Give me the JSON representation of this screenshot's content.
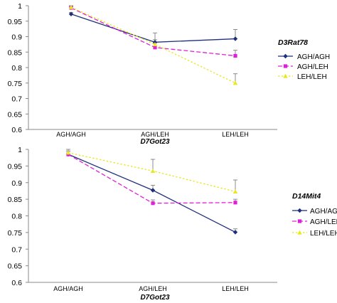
{
  "chart_data": [
    {
      "type": "line",
      "categories": [
        "AGH/AGH",
        "AGH/LEH",
        "LEH/LEH"
      ],
      "xlabel": "D7Got23",
      "ylim": [
        0.6,
        1.0
      ],
      "yticks": [
        0.6,
        0.65,
        0.7,
        0.75,
        0.8,
        0.85,
        0.9,
        0.95,
        1
      ],
      "ytick_labels": [
        "0.6",
        "0.65",
        "0.7",
        "0.75",
        "0.8",
        "0.85",
        "0.9",
        "0.95",
        "1"
      ],
      "grid": false,
      "legend_title": "D3Rat78",
      "legend_position": "right",
      "series": [
        {
          "name": "AGH/AGH",
          "values": [
            0.973,
            0.882,
            0.893
          ],
          "errors": [
            0.005,
            0.03,
            0.03
          ],
          "color": "#1f2f7a",
          "dash": "solid",
          "marker": "diamond"
        },
        {
          "name": "AGH/LEH",
          "values": [
            0.993,
            0.865,
            0.838
          ],
          "errors": [
            0.005,
            0.015,
            0.018
          ],
          "color": "#e020d8",
          "dash": "dashed",
          "marker": "square"
        },
        {
          "name": "LEH/LEH",
          "values": [
            0.995,
            0.875,
            0.75
          ],
          "errors": [
            0.005,
            0.015,
            0.03
          ],
          "color": "#e8e820",
          "dash": "dotted",
          "marker": "triangle"
        }
      ]
    },
    {
      "type": "line",
      "categories": [
        "AGH/AGH",
        "AGH/LEH",
        "LEH/LEH"
      ],
      "xlabel": "D7Got23",
      "ylim": [
        0.6,
        1.0
      ],
      "yticks": [
        0.6,
        0.65,
        0.7,
        0.75,
        0.8,
        0.85,
        0.9,
        0.95,
        1
      ],
      "ytick_labels": [
        "0.6",
        "0.65",
        "0.7",
        "0.75",
        "0.8",
        "0.85",
        "0.9",
        "0.95",
        "1"
      ],
      "grid": false,
      "legend_title": "D14Mit4",
      "legend_position": "right",
      "series": [
        {
          "name": "AGH/AGH",
          "values": [
            0.985,
            0.877,
            0.751
          ],
          "errors": [
            0.01,
            0.015,
            0.01
          ],
          "color": "#1f2f7a",
          "dash": "solid",
          "marker": "diamond"
        },
        {
          "name": "AGH/LEH",
          "values": [
            0.985,
            0.838,
            0.84
          ],
          "errors": [
            0.01,
            0.01,
            0.01
          ],
          "color": "#e020d8",
          "dash": "dashed",
          "marker": "square"
        },
        {
          "name": "LEH/LEH",
          "values": [
            0.99,
            0.935,
            0.873
          ],
          "errors": [
            0.01,
            0.035,
            0.035
          ],
          "color": "#e8e820",
          "dash": "dotted",
          "marker": "triangle"
        }
      ]
    }
  ]
}
